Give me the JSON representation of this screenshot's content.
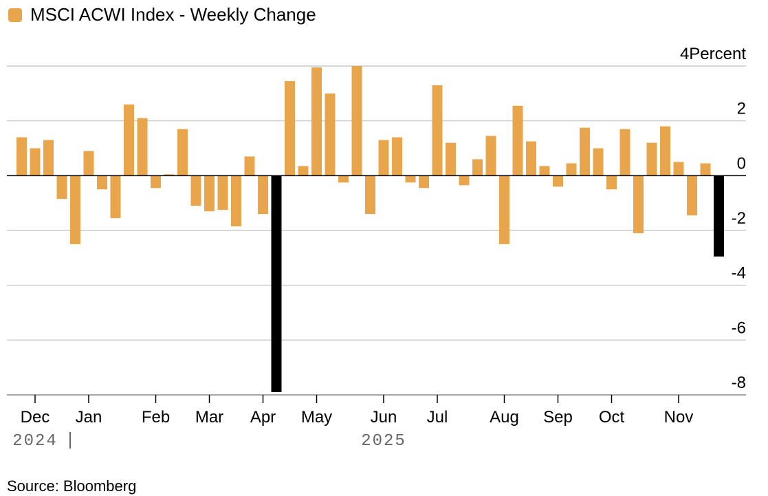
{
  "source": "Source: Bloomberg",
  "colors": {
    "bar": "#E8A54B",
    "highlight": "#000000",
    "grid": "#cccccc",
    "axis": "#000000",
    "year_text": "#666666"
  },
  "chart_data": {
    "type": "bar",
    "title": "MSCI ACWI Index - Weekly Change",
    "legend": [
      {
        "name": "MSCI ACWI Index - Weekly Change",
        "color": "#E8A54B"
      }
    ],
    "y_unit_label": "Percent",
    "ylim": [
      -8,
      4
    ],
    "y_ticks": [
      4,
      2,
      0,
      -2,
      -4,
      -6,
      -8
    ],
    "grid": true,
    "month_labels": [
      "Dec",
      "Jan",
      "Feb",
      "Mar",
      "Apr",
      "May",
      "Jun",
      "Jul",
      "Aug",
      "Sep",
      "Oct",
      "Nov"
    ],
    "month_label_week_index": [
      1,
      5,
      10,
      14,
      18,
      22,
      27,
      31,
      36,
      40,
      44,
      49
    ],
    "year_labels": [
      {
        "label": "2024",
        "week_index": 1,
        "separator": true
      },
      {
        "label": "2025",
        "week_index": 27,
        "separator": false
      }
    ],
    "values": [
      1.4,
      1.0,
      1.3,
      -0.85,
      -2.5,
      0.9,
      -0.5,
      -1.55,
      2.6,
      2.1,
      -0.45,
      0.05,
      1.7,
      -1.1,
      -1.3,
      -1.25,
      -1.85,
      0.7,
      -1.4,
      -7.9,
      3.45,
      0.35,
      3.95,
      3.0,
      -0.25,
      4.0,
      -1.4,
      1.3,
      1.4,
      -0.25,
      -0.45,
      3.3,
      1.2,
      -0.35,
      0.6,
      1.45,
      -2.5,
      2.55,
      1.25,
      0.35,
      -0.4,
      0.45,
      1.75,
      1.0,
      -0.5,
      1.7,
      -2.1,
      1.2,
      1.8,
      0.5,
      -1.45,
      0.45,
      -2.95
    ],
    "highlight_indices": [
      19,
      52
    ]
  }
}
